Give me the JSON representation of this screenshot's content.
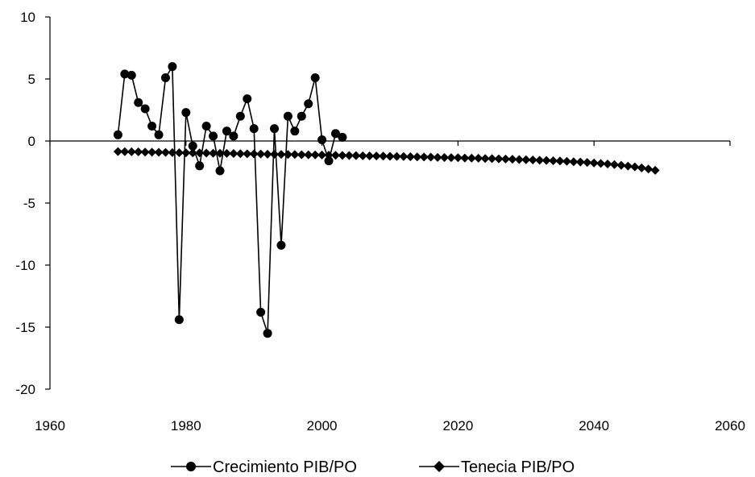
{
  "chart_data": {
    "type": "line",
    "title": "",
    "xlabel": "",
    "ylabel": "",
    "xlim": [
      1960,
      2060
    ],
    "ylim": [
      -20,
      10
    ],
    "xticks": [
      1960,
      1980,
      2000,
      2020,
      2040,
      2060
    ],
    "yticks": [
      10,
      5,
      0,
      -5,
      -10,
      -15,
      -20
    ],
    "grid": false,
    "legend_position": "bottom",
    "series": [
      {
        "name": "Crecimiento PIB/PO",
        "marker": "circle",
        "color": "#000000",
        "x": [
          1970,
          1971,
          1972,
          1973,
          1974,
          1975,
          1976,
          1977,
          1978,
          1979,
          1980,
          1981,
          1982,
          1983,
          1984,
          1985,
          1986,
          1987,
          1988,
          1989,
          1990,
          1991,
          1992,
          1993,
          1994,
          1995,
          1996,
          1997,
          1998,
          1999,
          2000,
          2001,
          2002,
          2003
        ],
        "y": [
          0.5,
          5.4,
          5.3,
          3.1,
          2.6,
          1.2,
          0.5,
          5.1,
          6.0,
          -14.4,
          2.3,
          -0.4,
          -2.0,
          1.2,
          0.4,
          -2.4,
          0.8,
          0.4,
          2.0,
          3.4,
          1.0,
          -13.8,
          -15.5,
          1.0,
          -8.4,
          2.0,
          0.8,
          2.0,
          3.0,
          5.1,
          0.1,
          -1.6,
          0.6,
          0.3
        ]
      },
      {
        "name": "Tenecia PIB/PO",
        "marker": "diamond",
        "color": "#000000",
        "x_start": 1970,
        "x_end": 2049,
        "y": [
          -0.85,
          -0.86,
          -0.87,
          -0.88,
          -0.89,
          -0.9,
          -0.91,
          -0.92,
          -0.93,
          -0.94,
          -0.95,
          -0.96,
          -0.96,
          -0.97,
          -0.98,
          -0.99,
          -1.0,
          -1.01,
          -1.02,
          -1.03,
          -1.04,
          -1.05,
          -1.06,
          -1.07,
          -1.08,
          -1.09,
          -1.09,
          -1.1,
          -1.11,
          -1.12,
          -1.13,
          -1.14,
          -1.15,
          -1.16,
          -1.17,
          -1.18,
          -1.19,
          -1.2,
          -1.21,
          -1.22,
          -1.23,
          -1.24,
          -1.25,
          -1.27,
          -1.28,
          -1.29,
          -1.3,
          -1.32,
          -1.33,
          -1.34,
          -1.35,
          -1.37,
          -1.38,
          -1.39,
          -1.41,
          -1.42,
          -1.44,
          -1.45,
          -1.47,
          -1.49,
          -1.51,
          -1.53,
          -1.55,
          -1.57,
          -1.59,
          -1.61,
          -1.64,
          -1.67,
          -1.7,
          -1.73,
          -1.77,
          -1.81,
          -1.85,
          -1.9,
          -1.96,
          -2.02,
          -2.09,
          -2.17,
          -2.26,
          -2.36
        ]
      }
    ]
  }
}
